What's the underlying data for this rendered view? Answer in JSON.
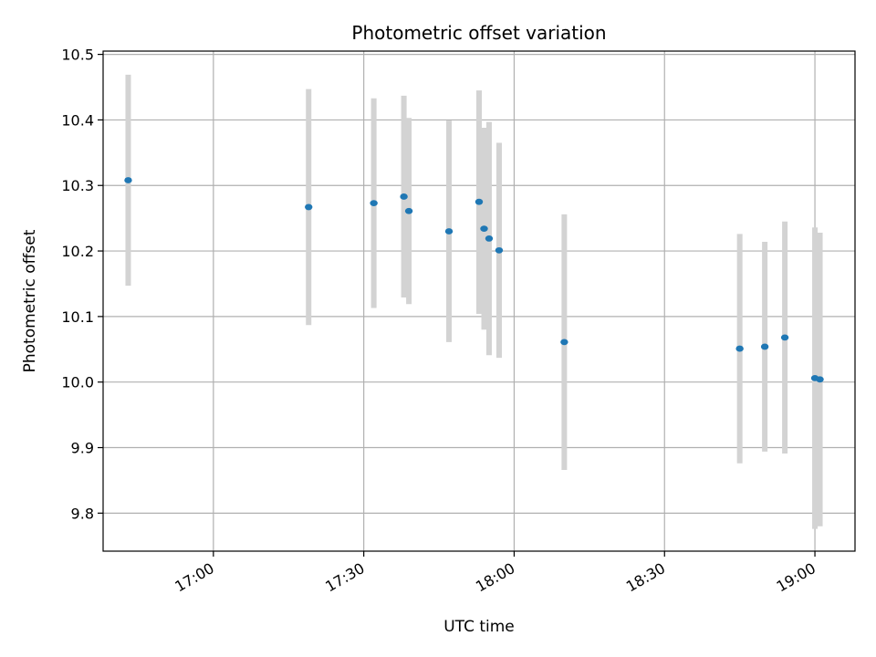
{
  "chart_data": {
    "type": "scatter",
    "title": "Photometric offset variation",
    "xlabel": "UTC time",
    "ylabel": "Photometric offset",
    "x_ticks": [
      "17:00",
      "17:30",
      "18:00",
      "18:30",
      "19:00"
    ],
    "y_ticks": [
      "9.8",
      "9.9",
      "10.0",
      "10.1",
      "10.2",
      "10.3",
      "10.4",
      "10.5"
    ],
    "xlim": [
      "16:38",
      "19:08"
    ],
    "ylim": [
      9.742,
      10.505
    ],
    "grid": true,
    "errorbar_color": "#d3d3d3",
    "point_color": "#1f77b4",
    "points": [
      {
        "x": "16:43",
        "y": 10.308,
        "ymin": 10.147,
        "ymax": 10.469
      },
      {
        "x": "17:19",
        "y": 10.267,
        "ymin": 10.087,
        "ymax": 10.447
      },
      {
        "x": "17:32",
        "y": 10.273,
        "ymin": 10.113,
        "ymax": 10.433
      },
      {
        "x": "17:38",
        "y": 10.283,
        "ymin": 10.129,
        "ymax": 10.437
      },
      {
        "x": "17:39",
        "y": 10.261,
        "ymin": 10.119,
        "ymax": 10.403
      },
      {
        "x": "17:47",
        "y": 10.23,
        "ymin": 10.061,
        "ymax": 10.399
      },
      {
        "x": "17:53",
        "y": 10.275,
        "ymin": 10.104,
        "ymax": 10.445
      },
      {
        "x": "17:54",
        "y": 10.234,
        "ymin": 10.08,
        "ymax": 10.388
      },
      {
        "x": "17:55",
        "y": 10.219,
        "ymin": 10.041,
        "ymax": 10.397
      },
      {
        "x": "17:57",
        "y": 10.201,
        "ymin": 10.037,
        "ymax": 10.365
      },
      {
        "x": "18:10",
        "y": 10.061,
        "ymin": 9.866,
        "ymax": 10.256
      },
      {
        "x": "18:45",
        "y": 10.051,
        "ymin": 9.876,
        "ymax": 10.226
      },
      {
        "x": "18:50",
        "y": 10.054,
        "ymin": 9.894,
        "ymax": 10.214
      },
      {
        "x": "18:54",
        "y": 10.068,
        "ymin": 9.891,
        "ymax": 10.245
      },
      {
        "x": "19:00",
        "y": 10.006,
        "ymin": 9.776,
        "ymax": 10.236
      },
      {
        "x": "19:01",
        "y": 10.004,
        "ymin": 9.78,
        "ymax": 10.228
      }
    ]
  }
}
